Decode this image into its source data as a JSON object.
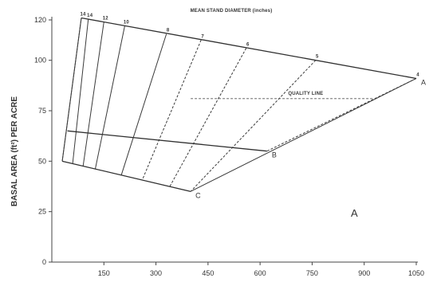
{
  "chart_data": {
    "type": "line",
    "title": "MEAN STAND DIAMETER (inches)",
    "ylabel": "BASAL AREA (ft²) PER ACRE",
    "xlabel": "",
    "xlim": [
      0,
      1050
    ],
    "ylim": [
      0,
      120
    ],
    "x_ticks": [
      "150",
      "300",
      "450",
      "600",
      "750",
      "900",
      "1050"
    ],
    "x_tick_values": [
      150,
      300,
      450,
      600,
      750,
      900,
      1050
    ],
    "y_ticks": [
      "0",
      "25",
      "50",
      "75",
      "100",
      "120"
    ],
    "y_tick_values": [
      0,
      25,
      50,
      75,
      100,
      120
    ],
    "grid": false,
    "stocking_lines": [
      {
        "label": "A",
        "points": [
          [
            85,
            121
          ],
          [
            1050,
            91
          ]
        ]
      },
      {
        "label": "B",
        "points": [
          [
            45,
            65
          ],
          [
            620,
            55
          ]
        ]
      },
      {
        "label": "C",
        "points": [
          [
            30,
            50
          ],
          [
            400,
            35
          ]
        ]
      }
    ],
    "boundary_lines": [
      {
        "points": [
          [
            85,
            121
          ],
          [
            30,
            50
          ]
        ]
      },
      {
        "points": [
          [
            1050,
            91
          ],
          [
            400,
            35
          ]
        ]
      }
    ],
    "quality_line": {
      "label": "QUALITY LINE",
      "points": [
        [
          400,
          81
        ],
        [
          925,
          81
        ]
      ]
    },
    "diameter_lines": [
      {
        "label": "14",
        "top": [
          85,
          121
        ],
        "bottom": [
          30,
          50
        ],
        "style": "solid"
      },
      {
        "label": "14",
        "top": [
          105,
          120.3
        ],
        "bottom": [
          60,
          48.8
        ],
        "style": "solid"
      },
      {
        "label": "12",
        "top": [
          150,
          119
        ],
        "bottom": [
          90,
          47.5
        ],
        "style": "solid"
      },
      {
        "label": "10",
        "top": [
          210,
          117
        ],
        "bottom": [
          125,
          46
        ],
        "style": "solid"
      },
      {
        "label": "8",
        "top": [
          330,
          113
        ],
        "bottom": [
          200,
          43
        ],
        "style": "solid"
      },
      {
        "label": "7",
        "top": [
          430,
          110
        ],
        "bottom": [
          260,
          40.5
        ],
        "style": "dashed"
      },
      {
        "label": "6",
        "top": [
          560,
          106
        ],
        "bottom": [
          340,
          37.5
        ],
        "style": "dashed"
      },
      {
        "label": "5",
        "top": [
          760,
          100
        ],
        "bottom": [
          400,
          35
        ],
        "style": "dashed"
      },
      {
        "label": "4",
        "top": [
          1050,
          91
        ],
        "bottom": [
          620,
          55
        ],
        "style": "dashed"
      }
    ],
    "corner_labels": [
      "A",
      "B",
      "C"
    ],
    "panel_label": "A"
  }
}
